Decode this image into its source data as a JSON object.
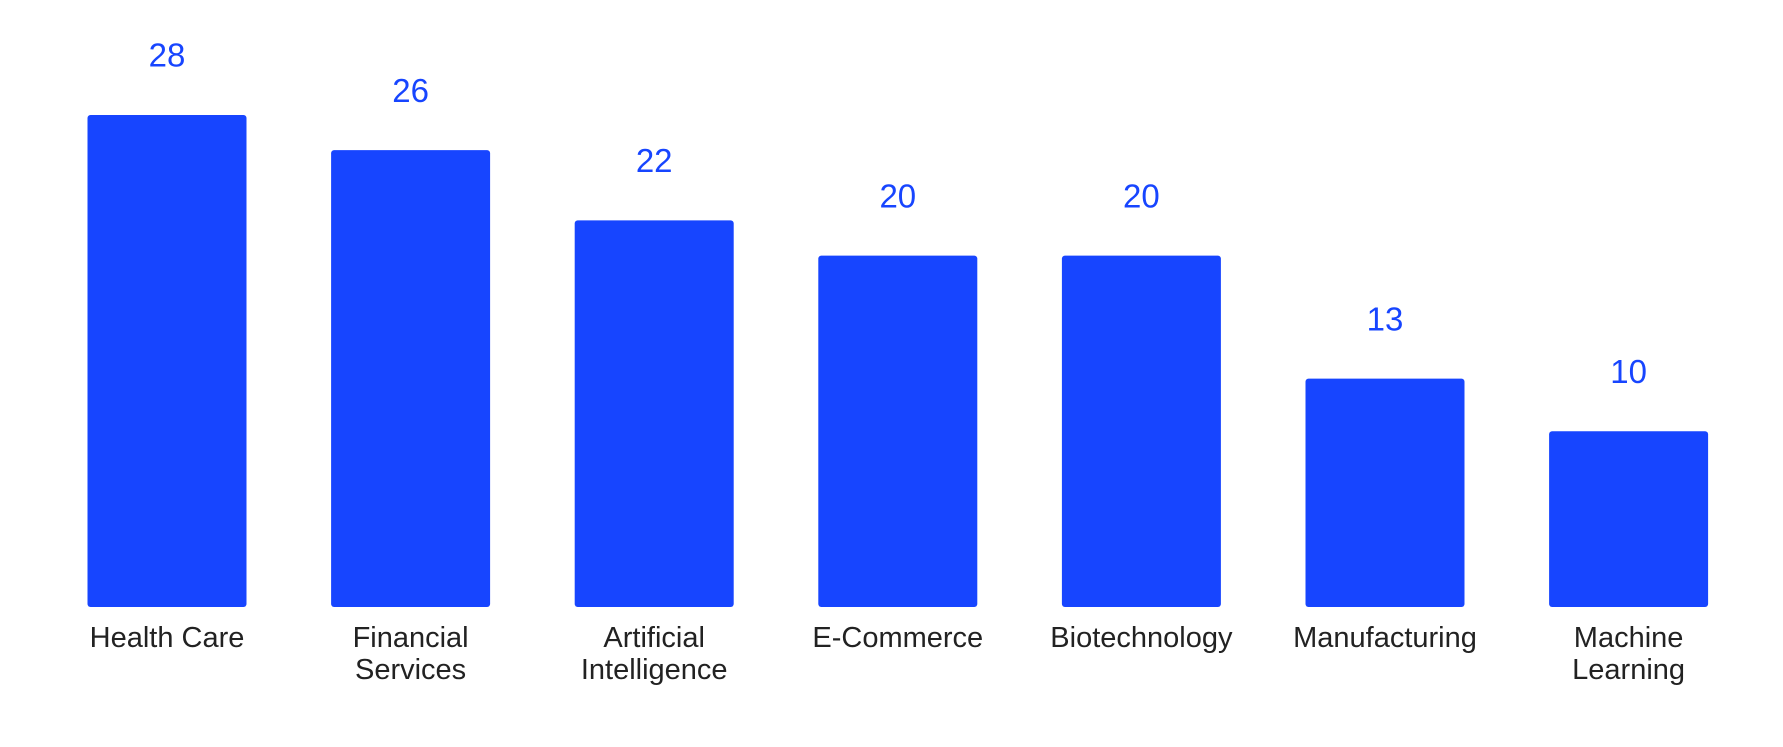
{
  "chart_data": {
    "type": "bar",
    "categories": [
      "Health Care",
      "Financial Services",
      "Artificial Intelligence",
      "E-Commerce",
      "Biotechnology",
      "Manufacturing",
      "Machine Learning"
    ],
    "values": [
      28,
      26,
      22,
      20,
      20,
      13,
      10
    ],
    "color": "#1745ff"
  }
}
